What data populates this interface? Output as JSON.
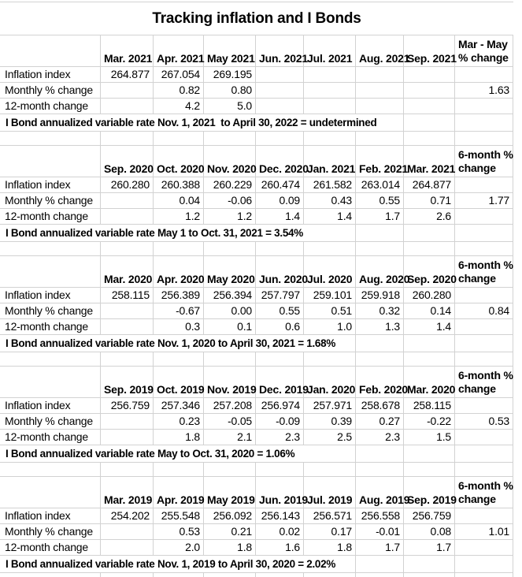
{
  "title": "Tracking inflation and I Bonds",
  "row_labels": {
    "inflation": "Inflation index",
    "monthly": "Monthly % change",
    "twelve": "12-month change"
  },
  "grid_color": "#d2d2d2",
  "sections": [
    {
      "months": [
        "Mar. 2021",
        "Apr. 2021",
        "May 2021",
        "Jun. 2021",
        "Jul. 2021",
        "Aug. 2021",
        "Sep. 2021"
      ],
      "change_header_line1": "Mar - May",
      "change_header_line2": "% change",
      "inflation_index": [
        "264.877",
        "267.054",
        "269.195",
        "",
        "",
        "",
        ""
      ],
      "monthly_pct_change": [
        "",
        "0.82",
        "0.80",
        "",
        "",
        "",
        ""
      ],
      "period_pct_change": "1.63",
      "twelve_month_change": [
        "",
        "4.2",
        "5.0",
        "",
        "",
        "",
        ""
      ],
      "note": "I Bond annualized variable rate Nov. 1, 2021  to April 30, 2022 = undetermined",
      "note_merge_cols": 7
    },
    {
      "months": [
        "Sep. 2020",
        "Oct. 2020",
        "Nov. 2020",
        "Dec. 2020",
        "Jan. 2021",
        "Feb. 2021",
        "Mar. 2021"
      ],
      "change_header_line1": "6-month %",
      "change_header_line2": "change",
      "inflation_index": [
        "260.280",
        "260.388",
        "260.229",
        "260.474",
        "261.582",
        "263.014",
        "264.877"
      ],
      "monthly_pct_change": [
        "",
        "0.04",
        "-0.06",
        "0.09",
        "0.43",
        "0.55",
        "0.71"
      ],
      "period_pct_change": "1.77",
      "twelve_month_change": [
        "",
        "1.2",
        "1.2",
        "1.4",
        "1.4",
        "1.7",
        "2.6"
      ],
      "note": "I Bond annualized variable rate May 1 to Oct. 31, 2021 = 3.54%",
      "note_merge_cols": 6
    },
    {
      "months": [
        "Mar. 2020",
        "Apr. 2020",
        "May 2020",
        "Jun. 2020",
        "Jul. 2020",
        "Aug. 2020",
        "Sep. 2020"
      ],
      "change_header_line1": "6-month %",
      "change_header_line2": "change",
      "inflation_index": [
        "258.115",
        "256.389",
        "256.394",
        "257.797",
        "259.101",
        "259.918",
        "260.280"
      ],
      "monthly_pct_change": [
        "",
        "-0.67",
        "0.00",
        "0.55",
        "0.51",
        "0.32",
        "0.14"
      ],
      "period_pct_change": "0.84",
      "twelve_month_change": [
        "",
        "0.3",
        "0.1",
        "0.6",
        "1.0",
        "1.3",
        "1.4"
      ],
      "note": "I Bond annualized variable rate Nov. 1, 2020 to April 30, 2021 = 1.68%",
      "note_merge_cols": 6
    },
    {
      "months": [
        "Sep. 2019",
        "Oct. 2019",
        "Nov. 2019",
        "Dec. 2019",
        "Jan. 2020",
        "Feb. 2020",
        "Mar. 2020"
      ],
      "change_header_line1": "6-month %",
      "change_header_line2": "change",
      "inflation_index": [
        "256.759",
        "257.346",
        "257.208",
        "256.974",
        "257.971",
        "258.678",
        "258.115"
      ],
      "monthly_pct_change": [
        "",
        "0.23",
        "-0.05",
        "-0.09",
        "0.39",
        "0.27",
        "-0.22"
      ],
      "period_pct_change": "0.53",
      "twelve_month_change": [
        "",
        "1.8",
        "2.1",
        "2.3",
        "2.5",
        "2.3",
        "1.5"
      ],
      "note": "I Bond annualized variable rate May to Oct. 31, 2020 = 1.06%",
      "note_merge_cols": 6
    },
    {
      "months": [
        "Mar. 2019",
        "Apr. 2019",
        "May 2019",
        "Jun. 2019",
        "Jul. 2019",
        "Aug. 2019",
        "Sep. 2019"
      ],
      "change_header_line1": "6-month %",
      "change_header_line2": "change",
      "inflation_index": [
        "254.202",
        "255.548",
        "256.092",
        "256.143",
        "256.571",
        "256.558",
        "256.759"
      ],
      "monthly_pct_change": [
        "",
        "0.53",
        "0.21",
        "0.02",
        "0.17",
        "-0.01",
        "0.08"
      ],
      "period_pct_change": "1.01",
      "twelve_month_change": [
        "",
        "2.0",
        "1.8",
        "1.6",
        "1.8",
        "1.7",
        "1.7"
      ],
      "note": "I Bond annualized variable rate Nov. 1, 2019 to April 30, 2020 = 2.02%",
      "note_merge_cols": 6
    }
  ]
}
